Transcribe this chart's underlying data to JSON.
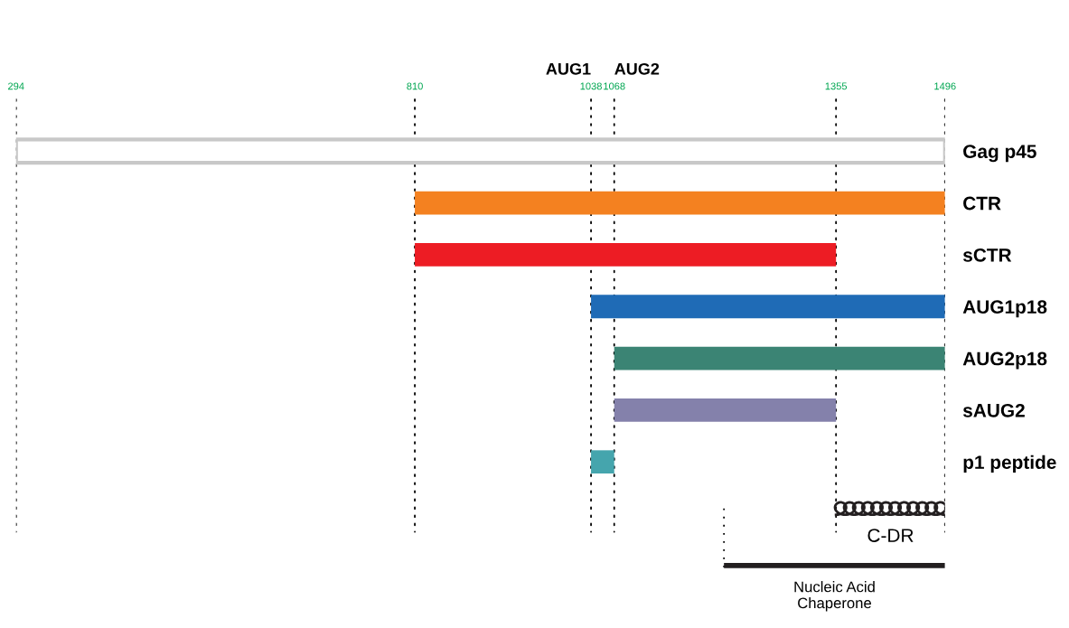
{
  "chart_data": {
    "type": "bar",
    "orientation": "horizontal",
    "categories": [
      "Gag p45",
      "CTR",
      "sCTR",
      "AUG1p18",
      "AUG2p18",
      "sAUG2",
      "p1 peptide",
      null,
      null
    ],
    "base": [
      294,
      810,
      810,
      1038,
      1068,
      1068,
      1038,
      null,
      1210
    ],
    "values": [
      1202,
      686,
      545,
      458,
      428,
      287,
      30,
      null,
      286
    ],
    "colors": [
      "#ffffff",
      "#f48120",
      "#ed1c24",
      "#1f6bb6",
      "#3b8474",
      "#8481ab",
      "#45a5ad",
      null,
      "#231f20"
    ],
    "xlim": [
      294,
      1496
    ],
    "xticks": [
      294,
      810,
      1038,
      1068,
      1355,
      1496
    ],
    "grid": "x",
    "line_style": "dotted",
    "ref_lines": [
      {
        "axis": "x",
        "value": 1210,
        "label": null
      }
    ],
    "annotations": [
      "AUG1",
      "AUG2",
      "C-DR",
      "Nucleic Acid\nChaperone"
    ]
  }
}
